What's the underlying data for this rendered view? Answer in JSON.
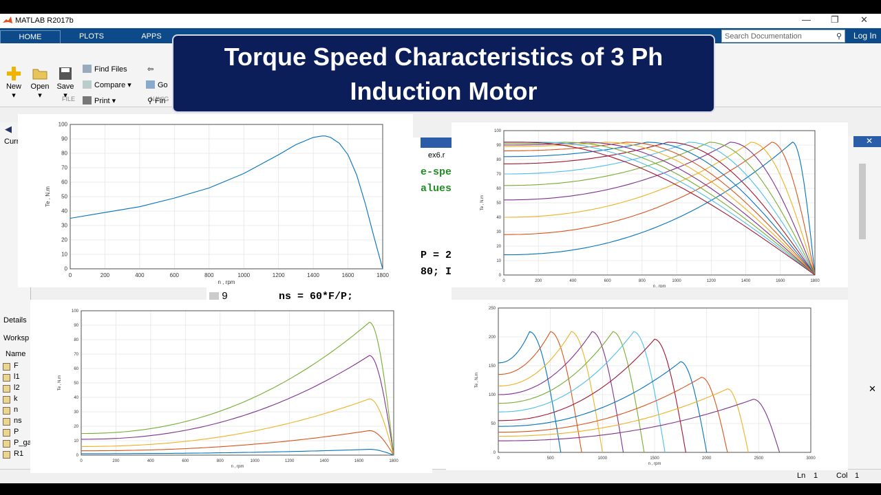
{
  "window": {
    "title": "MATLAB R2017b"
  },
  "tabs": [
    {
      "label": "HOME"
    },
    {
      "label": "PLOTS"
    },
    {
      "label": "APPS"
    }
  ],
  "search": {
    "placeholder": "Search Documentation"
  },
  "login": "Log In",
  "ribbon": {
    "new": "New",
    "open": "Open",
    "save": "Save",
    "find_files": "Find Files",
    "compare": "Compare",
    "print": "Print",
    "go": "Go",
    "find": "Fin",
    "group_file": "FILE",
    "group_navigate": "NAVIG"
  },
  "banner": {
    "line1": "Torque Speed Characteristics of 3 Ph",
    "line2": "Induction Motor"
  },
  "left": {
    "current": "Curr",
    "details": "Details",
    "workspace": "Worksp",
    "name_header": "Name",
    "variables": [
      "F",
      "l1",
      "l2",
      "k",
      "n",
      "ns",
      "P",
      "P_ga",
      "R1"
    ]
  },
  "editor": {
    "tab": "ex6.r",
    "l1": "e-spe",
    "l2": "alues",
    "l3": "P = 2",
    "l4": "80; I",
    "l5_num": "9",
    "l5_code": "ns = 60*F/P;"
  },
  "statusbar": {
    "ln_label": "Ln",
    "ln": "1",
    "col_label": "Col",
    "col": "1"
  },
  "colors": [
    "#0072bd",
    "#d95319",
    "#edb120",
    "#7e2f8e",
    "#77ac30",
    "#4dbeee",
    "#a2142f"
  ],
  "chart_data": [
    {
      "type": "line",
      "xlabel": "n , rpm",
      "ylabel": "Te , N.m",
      "xlim": [
        0,
        1800
      ],
      "ylim": [
        0,
        100
      ],
      "xticks": [
        0,
        200,
        400,
        600,
        800,
        1000,
        1200,
        1400,
        1600,
        1800
      ],
      "yticks": [
        0,
        10,
        20,
        30,
        40,
        50,
        60,
        70,
        80,
        90,
        100
      ],
      "grid": true,
      "series": [
        {
          "x": [
            0,
            200,
            400,
            600,
            800,
            1000,
            1200,
            1300,
            1400,
            1450,
            1470,
            1500,
            1550,
            1600,
            1650,
            1700,
            1750,
            1800
          ],
          "y": [
            35,
            39,
            43,
            49,
            56,
            66,
            79,
            86,
            91,
            92,
            92,
            91,
            87,
            79,
            65,
            45,
            22,
            0
          ]
        }
      ]
    },
    {
      "type": "line",
      "xlabel": "n , rpm",
      "ylabel": "Te , N.m",
      "xlim": [
        0,
        1800
      ],
      "ylim": [
        0,
        100
      ],
      "xticks": [
        0,
        200,
        400,
        600,
        800,
        1000,
        1200,
        1400,
        1600,
        1800
      ],
      "yticks": [
        0,
        10,
        20,
        30,
        40,
        50,
        60,
        70,
        80,
        90,
        100
      ],
      "grid": true,
      "family": {
        "peaks_x": [
          1670,
          1550,
          1430,
          1310,
          1190,
          1070,
          950,
          830,
          710,
          590,
          470,
          350,
          230,
          110
        ],
        "start_y": [
          14,
          28,
          40,
          52,
          62,
          70,
          77,
          82,
          86,
          89,
          90,
          91,
          92,
          92
        ],
        "peak_y": 92,
        "end_x": 1800
      }
    },
    {
      "type": "line",
      "xlabel": "n , rpm",
      "ylabel": "Te , N.m",
      "xlim": [
        0,
        1800
      ],
      "ylim": [
        0,
        100
      ],
      "xticks": [
        0,
        200,
        400,
        600,
        800,
        1000,
        1200,
        1400,
        1600,
        1800
      ],
      "yticks": [
        0,
        10,
        20,
        30,
        40,
        50,
        60,
        70,
        80,
        90,
        100
      ],
      "grid": true,
      "family": {
        "peaks_x": [
          1660,
          1660,
          1660,
          1660,
          1660
        ],
        "start_y": [
          1,
          3,
          6,
          11,
          15
        ],
        "peak_y": [
          4,
          17,
          39,
          69,
          92
        ],
        "end_x": 1800
      }
    },
    {
      "type": "line",
      "xlabel": "n , rpm",
      "ylabel": "Te , N.m",
      "xlim": [
        0,
        3000
      ],
      "ylim": [
        0,
        250
      ],
      "xticks": [
        0,
        500,
        1000,
        1500,
        2000,
        2500,
        3000
      ],
      "yticks": [
        0,
        50,
        100,
        150,
        200,
        250
      ],
      "grid": true,
      "family": {
        "end_x": [
          600,
          800,
          1000,
          1200,
          1400,
          1600,
          1800,
          2000,
          2200,
          2400,
          2700
        ],
        "peaks_x": [
          300,
          500,
          700,
          900,
          1100,
          1300,
          1500,
          1750,
          1950,
          2200,
          2450
        ],
        "start_y": [
          155,
          135,
          115,
          100,
          85,
          70,
          55,
          45,
          35,
          28,
          20
        ],
        "peak_y": [
          209,
          209,
          209,
          209,
          209,
          209,
          196,
          157,
          130,
          110,
          92
        ]
      }
    }
  ]
}
